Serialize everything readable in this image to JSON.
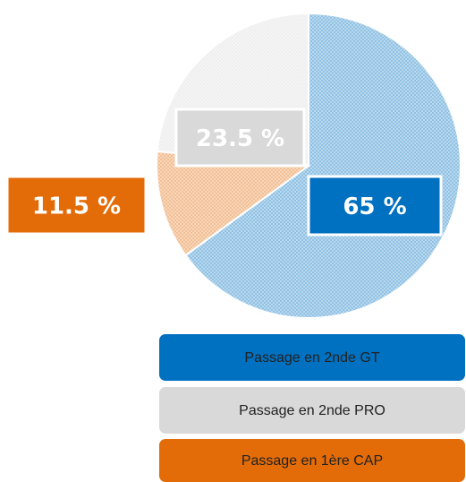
{
  "chart_data": {
    "type": "pie",
    "categories": [
      "Passage en 2nde GT",
      "Passage en 2nde PRO",
      "Passage en 1ère CAP"
    ],
    "values": [
      65,
      23.5,
      11.5
    ],
    "value_labels": [
      "65 %",
      "23.5 %",
      "11.5 %"
    ],
    "colors": [
      "#0070c0",
      "#d9d9d9",
      "#e36c09"
    ]
  }
}
